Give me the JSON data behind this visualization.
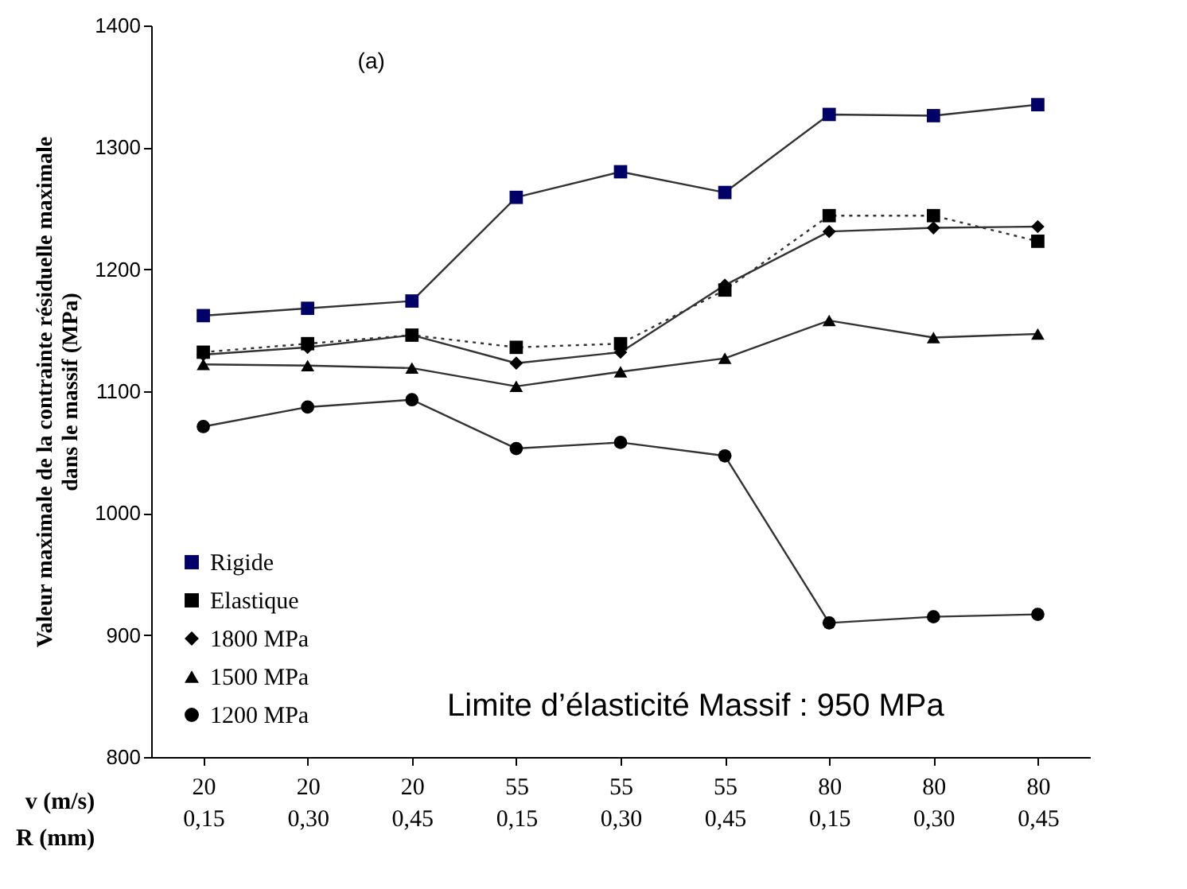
{
  "chart_data": {
    "type": "line",
    "ylabel": "Valeur maximale de la contrainte  résiduelle maximale\ndans le massif (MPa)",
    "categories": [
      "20\n0,15",
      "20\n0,30",
      "20\n0,45",
      "55\n0,15",
      "55\n0,30",
      "55\n0,45",
      "80\n0,15",
      "80\n0,30",
      "80\n0,45"
    ],
    "series": [
      {
        "name": "Rigide",
        "color": "#000066",
        "marker": "square",
        "line_style": "solid",
        "values": [
          1162,
          1168,
          1174,
          1259,
          1280,
          1263,
          1327,
          1326,
          1335
        ]
      },
      {
        "name": "Elastique",
        "color": "#000000",
        "marker": "square",
        "line_style": "dotted",
        "values": [
          1132,
          1139,
          1146,
          1136,
          1139,
          1183,
          1244,
          1244,
          1223
        ]
      },
      {
        "name": "1800 MPa",
        "color": "#000000",
        "marker": "diamond",
        "line_style": "solid",
        "values": [
          1130,
          1136,
          1146,
          1123,
          1132,
          1187,
          1231,
          1234,
          1235
        ]
      },
      {
        "name": "1500 MPa",
        "color": "#000000",
        "marker": "triangle",
        "line_style": "solid",
        "values": [
          1122,
          1121,
          1119,
          1104,
          1116,
          1127,
          1158,
          1144,
          1147
        ]
      },
      {
        "name": "1200 MPa",
        "color": "#000000",
        "marker": "circle",
        "line_style": "solid",
        "values": [
          1071,
          1087,
          1093,
          1053,
          1058,
          1047,
          910,
          915,
          917
        ]
      }
    ],
    "ylim": [
      800,
      1400
    ],
    "yticks": [
      800,
      900,
      1000,
      1100,
      1200,
      1300,
      1400
    ],
    "grid": false,
    "legend": "bottom left",
    "annotations": [
      "(a)",
      "Limite d’élasticité Massif : 950 MPa",
      "v (m/s)",
      "R (mm)"
    ]
  }
}
